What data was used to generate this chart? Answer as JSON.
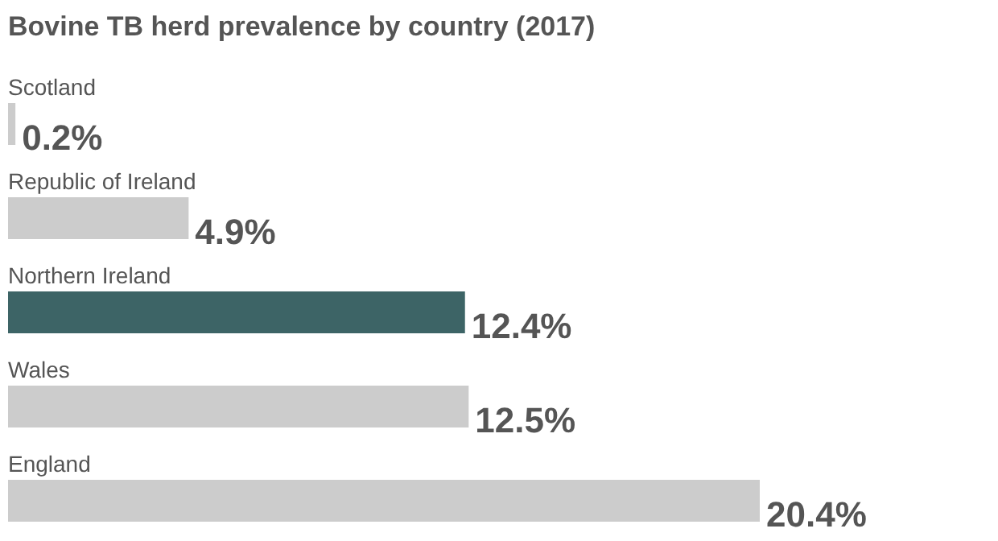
{
  "chart_data": {
    "type": "bar",
    "orientation": "horizontal",
    "title": "Bovine TB herd prevalence by country (2017)",
    "categories": [
      "Scotland",
      "Republic of Ireland",
      "Northern Ireland",
      "Wales",
      "England"
    ],
    "values": [
      0.2,
      4.9,
      12.4,
      12.5,
      20.4
    ],
    "colors": [
      "#cccccc",
      "#cccccc",
      "#3d6466",
      "#cccccc",
      "#cccccc"
    ],
    "value_labels": [
      "0.2%",
      "4.9%",
      "12.4%",
      "12.5%",
      "20.4%"
    ]
  }
}
